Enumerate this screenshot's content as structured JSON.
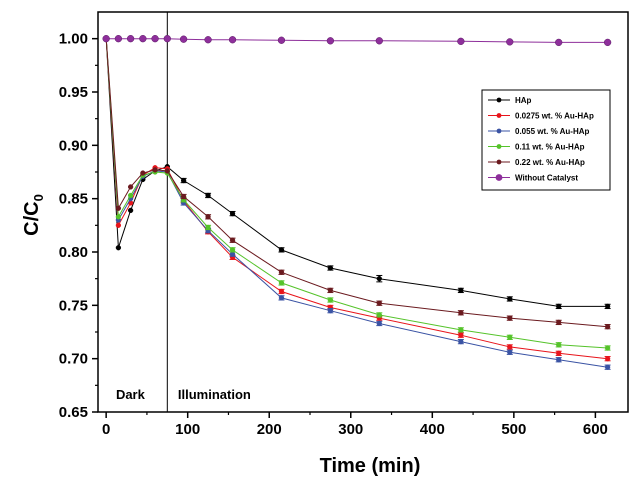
{
  "chart_data": {
    "type": "line",
    "xlabel": "Time (min)",
    "ylabel_main": "C/C",
    "ylabel_sub": "0",
    "xlim": [
      -10,
      640
    ],
    "ylim": [
      0.65,
      1.025
    ],
    "x_ticks": [
      0,
      100,
      200,
      300,
      400,
      500,
      600
    ],
    "y_ticks": [
      0.65,
      0.7,
      0.75,
      0.8,
      0.85,
      0.9,
      0.95,
      1.0
    ],
    "x_tick_labels": [
      "0",
      "100",
      "200",
      "300",
      "400",
      "500",
      "600"
    ],
    "y_tick_labels": [
      "0.65",
      "0.70",
      "0.75",
      "0.80",
      "0.85",
      "0.90",
      "0.95",
      "1.00"
    ],
    "grid": false,
    "legend_position": "right",
    "divider_x": 75,
    "annotations": [
      {
        "text": "Dark",
        "x": 12,
        "y": 0.667
      },
      {
        "text": "Illumination",
        "x": 88,
        "y": 0.667
      }
    ],
    "series": [
      {
        "name": "HAp",
        "color": "#000000",
        "x": [
          0,
          15,
          30,
          45,
          60,
          75,
          95,
          125,
          155,
          215,
          275,
          335,
          435,
          495,
          555,
          615
        ],
        "y": [
          1.0,
          0.804,
          0.839,
          0.868,
          0.876,
          0.88,
          0.867,
          0.853,
          0.836,
          0.802,
          0.785,
          0.775,
          0.764,
          0.756,
          0.749,
          0.749
        ],
        "err": [
          0,
          0,
          0,
          0,
          0,
          0,
          0.002,
          0.002,
          0.002,
          0.002,
          0.002,
          0.003,
          0.002,
          0.002,
          0.002,
          0.002
        ]
      },
      {
        "name": "0.0275 wt. % Au-HAp",
        "color": "#e8141b",
        "x": [
          0,
          15,
          30,
          45,
          60,
          75,
          95,
          125,
          155,
          215,
          275,
          335,
          435,
          495,
          555,
          615
        ],
        "y": [
          1.0,
          0.825,
          0.846,
          0.872,
          0.879,
          0.878,
          0.848,
          0.819,
          0.795,
          0.763,
          0.748,
          0.738,
          0.722,
          0.711,
          0.705,
          0.7
        ],
        "err": [
          0,
          0,
          0,
          0,
          0,
          0,
          0.002,
          0.002,
          0.002,
          0.002,
          0.002,
          0.002,
          0.002,
          0.002,
          0.002,
          0.002
        ]
      },
      {
        "name": "0.055 wt. % Au-HAp",
        "color": "#3a53a4",
        "x": [
          0,
          15,
          30,
          45,
          60,
          75,
          95,
          125,
          155,
          215,
          275,
          335,
          435,
          495,
          555,
          615
        ],
        "y": [
          1.0,
          0.83,
          0.85,
          0.871,
          0.876,
          0.875,
          0.846,
          0.82,
          0.798,
          0.757,
          0.745,
          0.733,
          0.716,
          0.706,
          0.699,
          0.692
        ],
        "err": [
          0,
          0,
          0,
          0,
          0,
          0,
          0.002,
          0.002,
          0.002,
          0.002,
          0.002,
          0.002,
          0.002,
          0.002,
          0.002,
          0.002
        ]
      },
      {
        "name": "0.11 wt. % Au-HAp",
        "color": "#55c32a",
        "x": [
          0,
          15,
          30,
          45,
          60,
          75,
          95,
          125,
          155,
          215,
          275,
          335,
          435,
          495,
          555,
          615
        ],
        "y": [
          1.0,
          0.833,
          0.853,
          0.872,
          0.875,
          0.874,
          0.849,
          0.823,
          0.802,
          0.771,
          0.755,
          0.741,
          0.727,
          0.72,
          0.713,
          0.71
        ],
        "err": [
          0,
          0,
          0,
          0,
          0,
          0,
          0.002,
          0.002,
          0.002,
          0.002,
          0.002,
          0.002,
          0.002,
          0.002,
          0.002,
          0.002
        ]
      },
      {
        "name": "0.22 wt. % Au-HAp",
        "color": "#6b1a1f",
        "x": [
          0,
          15,
          30,
          45,
          60,
          75,
          95,
          125,
          155,
          215,
          275,
          335,
          435,
          495,
          555,
          615
        ],
        "y": [
          1.0,
          0.841,
          0.861,
          0.874,
          0.877,
          0.876,
          0.852,
          0.833,
          0.811,
          0.781,
          0.764,
          0.752,
          0.743,
          0.738,
          0.734,
          0.73
        ],
        "err": [
          0,
          0,
          0,
          0,
          0,
          0,
          0.002,
          0.002,
          0.002,
          0.002,
          0.002,
          0.002,
          0.002,
          0.002,
          0.002,
          0.002
        ]
      },
      {
        "name": "Without Catalyst",
        "color": "#8e2f9b",
        "x": [
          0,
          15,
          30,
          45,
          60,
          75,
          95,
          125,
          155,
          215,
          275,
          335,
          435,
          495,
          555,
          615
        ],
        "y": [
          1.0,
          1.0,
          1.0,
          1.0,
          1.0,
          1.0,
          0.9995,
          0.999,
          0.999,
          0.9985,
          0.998,
          0.998,
          0.9975,
          0.997,
          0.9965,
          0.9965
        ],
        "err": [
          0,
          0,
          0,
          0,
          0,
          0,
          0,
          0,
          0,
          0,
          0,
          0,
          0,
          0,
          0,
          0
        ]
      }
    ]
  }
}
